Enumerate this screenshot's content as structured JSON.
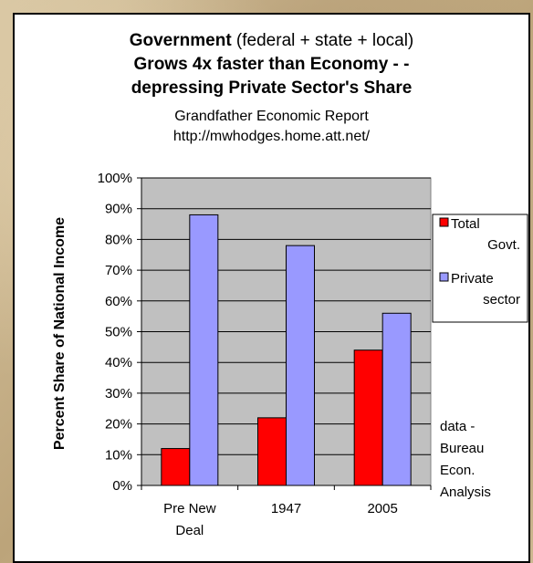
{
  "title": {
    "bold": "Government",
    "normal": " (federal + state + local)",
    "line2": "Grows 4x faster than Economy - -",
    "line3": "depressing Private Sector's Share"
  },
  "subtitle": {
    "line1": "Grandfather Economic Report",
    "line2": "http://mwhodges.home.att.net/"
  },
  "chart_data": {
    "type": "bar",
    "title": "Government (federal + state + local) Grows 4x faster than Economy - - depressing Private Sector's Share",
    "subtitle": "Grandfather Economic Report http://mwhodges.home.att.net/",
    "categories": [
      [
        "Pre New",
        "Deal"
      ],
      [
        "1947"
      ],
      [
        "2005"
      ]
    ],
    "series": [
      {
        "name": "Total Govt.",
        "legend_lines": [
          "Total",
          "Govt."
        ],
        "color": "#ff0000",
        "values": [
          12,
          22,
          44
        ]
      },
      {
        "name": "Private sector",
        "legend_lines": [
          "Private",
          "sector"
        ],
        "color": "#9999ff",
        "values": [
          88,
          78,
          56
        ]
      }
    ],
    "ylabel": "Percent Share of National Income",
    "ylim": [
      0,
      100
    ],
    "yticks": [
      0,
      10,
      20,
      30,
      40,
      50,
      60,
      70,
      80,
      90,
      100
    ],
    "ytick_suffix": "%",
    "grid": true,
    "plot_background": "#c0c0c0",
    "legend_placement": "right",
    "annotation": [
      "data -",
      "Bureau",
      "Econ.",
      "Analysis"
    ]
  }
}
